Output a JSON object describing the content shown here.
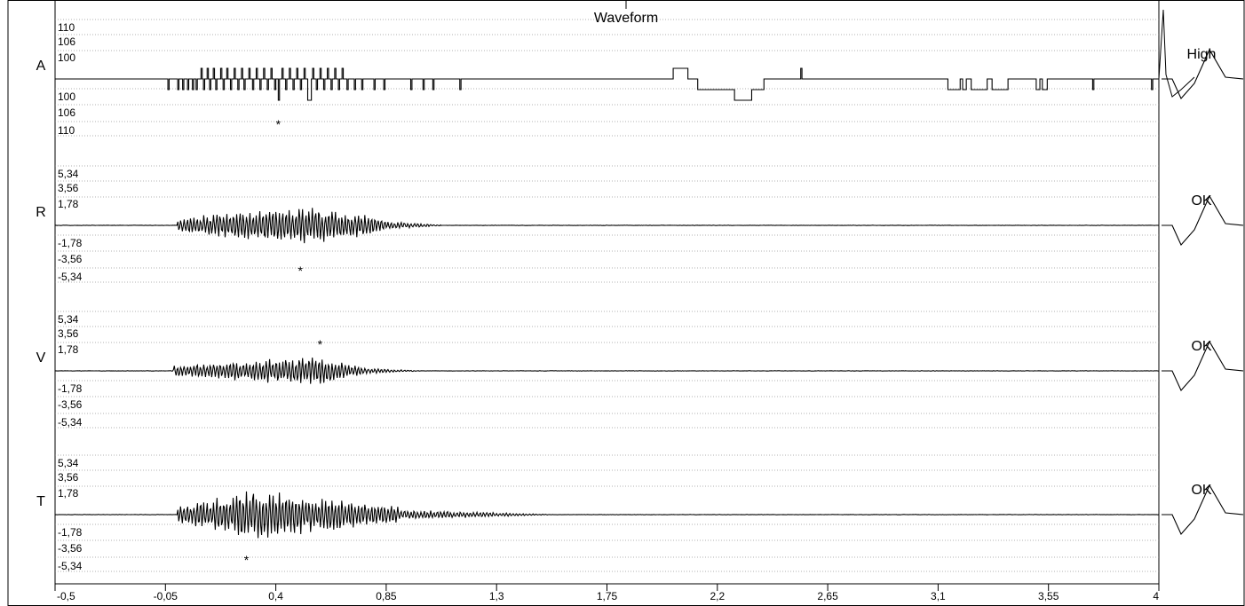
{
  "window": {
    "title": "Waveform"
  },
  "chart_data": {
    "type": "line",
    "title": "Waveform",
    "xlim": [
      -0.5,
      4
    ],
    "x_ticks": [
      -0.5,
      -0.05,
      0.4,
      0.85,
      1.3,
      1.75,
      2.2,
      2.65,
      3.1,
      3.55,
      4
    ],
    "x_tick_labels": [
      "-0,5",
      "-0,05",
      "0,4",
      "0,85",
      "1,3",
      "1,75",
      "2,2",
      "2,65",
      "3,1",
      "3,55",
      "4"
    ],
    "grid": "horizontal dotted",
    "channels": [
      {
        "name": "A",
        "status": "High",
        "tick_labels": [
          "110",
          "106",
          "100",
          "100",
          "106",
          "110"
        ],
        "peak_marker": {
          "x": 0.41,
          "direction": "down"
        },
        "trace": {
          "kind": "square",
          "segments": [
            [
              -0.5,
              0
            ],
            [
              -0.04,
              -1
            ],
            [
              -0.035,
              0
            ],
            [
              0.0,
              -1
            ],
            [
              0.005,
              0
            ],
            [
              0.02,
              -1
            ],
            [
              0.025,
              0
            ],
            [
              0.04,
              -1
            ],
            [
              0.045,
              0
            ],
            [
              0.06,
              -1
            ],
            [
              0.065,
              0
            ],
            [
              0.075,
              -1
            ],
            [
              0.08,
              0
            ],
            [
              0.095,
              1
            ],
            [
              0.1,
              0
            ],
            [
              0.105,
              -1
            ],
            [
              0.11,
              0
            ],
            [
              0.12,
              1
            ],
            [
              0.125,
              0
            ],
            [
              0.13,
              -1
            ],
            [
              0.135,
              0
            ],
            [
              0.145,
              1
            ],
            [
              0.15,
              0
            ],
            [
              0.155,
              -1
            ],
            [
              0.16,
              0
            ],
            [
              0.175,
              1
            ],
            [
              0.18,
              0
            ],
            [
              0.185,
              -1
            ],
            [
              0.19,
              0
            ],
            [
              0.2,
              1
            ],
            [
              0.205,
              0
            ],
            [
              0.215,
              -1
            ],
            [
              0.22,
              0
            ],
            [
              0.23,
              1
            ],
            [
              0.235,
              0
            ],
            [
              0.245,
              -1
            ],
            [
              0.25,
              0
            ],
            [
              0.26,
              1
            ],
            [
              0.265,
              0
            ],
            [
              0.27,
              -1
            ],
            [
              0.275,
              0
            ],
            [
              0.29,
              1
            ],
            [
              0.295,
              0
            ],
            [
              0.305,
              -1
            ],
            [
              0.31,
              0
            ],
            [
              0.32,
              1
            ],
            [
              0.325,
              0
            ],
            [
              0.335,
              -1
            ],
            [
              0.34,
              0
            ],
            [
              0.35,
              1
            ],
            [
              0.355,
              0
            ],
            [
              0.365,
              -1
            ],
            [
              0.37,
              0
            ],
            [
              0.38,
              1
            ],
            [
              0.385,
              0
            ],
            [
              0.395,
              -1
            ],
            [
              0.4,
              0
            ],
            [
              0.41,
              -2
            ],
            [
              0.415,
              0
            ],
            [
              0.425,
              1
            ],
            [
              0.43,
              0
            ],
            [
              0.44,
              -1
            ],
            [
              0.445,
              0
            ],
            [
              0.455,
              1
            ],
            [
              0.46,
              0
            ],
            [
              0.47,
              -1
            ],
            [
              0.475,
              0
            ],
            [
              0.485,
              1
            ],
            [
              0.49,
              0
            ],
            [
              0.5,
              -1
            ],
            [
              0.505,
              0
            ],
            [
              0.515,
              1
            ],
            [
              0.52,
              0
            ],
            [
              0.53,
              -2
            ],
            [
              0.545,
              0
            ],
            [
              0.55,
              1
            ],
            [
              0.555,
              0
            ],
            [
              0.565,
              -1
            ],
            [
              0.57,
              0
            ],
            [
              0.58,
              1
            ],
            [
              0.585,
              0
            ],
            [
              0.595,
              -1
            ],
            [
              0.6,
              0
            ],
            [
              0.61,
              1
            ],
            [
              0.615,
              0
            ],
            [
              0.625,
              -1
            ],
            [
              0.63,
              0
            ],
            [
              0.64,
              1
            ],
            [
              0.645,
              0
            ],
            [
              0.655,
              -1
            ],
            [
              0.66,
              0
            ],
            [
              0.67,
              1
            ],
            [
              0.675,
              0
            ],
            [
              0.69,
              -1
            ],
            [
              0.695,
              0
            ],
            [
              0.72,
              -1
            ],
            [
              0.725,
              0
            ],
            [
              0.75,
              -1
            ],
            [
              0.755,
              0
            ],
            [
              0.8,
              -1
            ],
            [
              0.805,
              0
            ],
            [
              0.84,
              -1
            ],
            [
              0.845,
              0
            ],
            [
              0.95,
              -1
            ],
            [
              0.955,
              0
            ],
            [
              1.0,
              -1
            ],
            [
              1.005,
              0
            ],
            [
              1.04,
              -1
            ],
            [
              1.045,
              0
            ],
            [
              1.15,
              -1
            ],
            [
              1.155,
              0
            ],
            [
              2.02,
              1
            ],
            [
              2.08,
              0
            ],
            [
              2.12,
              -1
            ],
            [
              2.27,
              -2
            ],
            [
              2.29,
              -2
            ],
            [
              2.3,
              -2
            ],
            [
              2.34,
              -1
            ],
            [
              2.39,
              0
            ],
            [
              2.54,
              1
            ],
            [
              2.545,
              0
            ],
            [
              3.14,
              -1
            ],
            [
              3.19,
              0
            ],
            [
              3.2,
              -1
            ],
            [
              3.215,
              0
            ],
            [
              3.235,
              -1
            ],
            [
              3.3,
              0
            ],
            [
              3.32,
              -1
            ],
            [
              3.385,
              0
            ],
            [
              3.5,
              -1
            ],
            [
              3.515,
              0
            ],
            [
              3.525,
              -1
            ],
            [
              3.545,
              0
            ],
            [
              3.73,
              -1
            ],
            [
              3.735,
              0
            ],
            [
              3.97,
              -1
            ],
            [
              3.975,
              0
            ],
            [
              4,
              0
            ]
          ]
        }
      },
      {
        "name": "R",
        "status": "OK",
        "tick_labels": [
          "5,34",
          "3,56",
          "1,78",
          "-1,78",
          "-3,56",
          "-5,34"
        ],
        "peak_marker": {
          "x": 0.5,
          "direction": "down"
        },
        "trace": {
          "kind": "burst",
          "start": 0.0,
          "peak": 0.5,
          "end": 0.85,
          "tail": 1.1,
          "amplitude": 2.6,
          "seed": 11
        }
      },
      {
        "name": "V",
        "status": "OK",
        "tick_labels": [
          "5,34",
          "3,56",
          "1,78",
          "-1,78",
          "-3,56",
          "-5,34"
        ],
        "peak_marker": {
          "x": 0.58,
          "direction": "up"
        },
        "trace": {
          "kind": "burst",
          "start": -0.02,
          "peak": 0.55,
          "end": 0.75,
          "tail": 1.0,
          "amplitude": 1.9,
          "seed": 23
        }
      },
      {
        "name": "T",
        "status": "OK",
        "tick_labels": [
          "5,34",
          "3,56",
          "1,78",
          "-1,78",
          "-3,56",
          "-5,34"
        ],
        "peak_marker": {
          "x": 0.28,
          "direction": "down"
        },
        "trace": {
          "kind": "burst",
          "start": 0.0,
          "peak": 0.3,
          "end": 0.9,
          "tail": 1.55,
          "amplitude": 3.3,
          "seed": 37
        }
      }
    ]
  }
}
